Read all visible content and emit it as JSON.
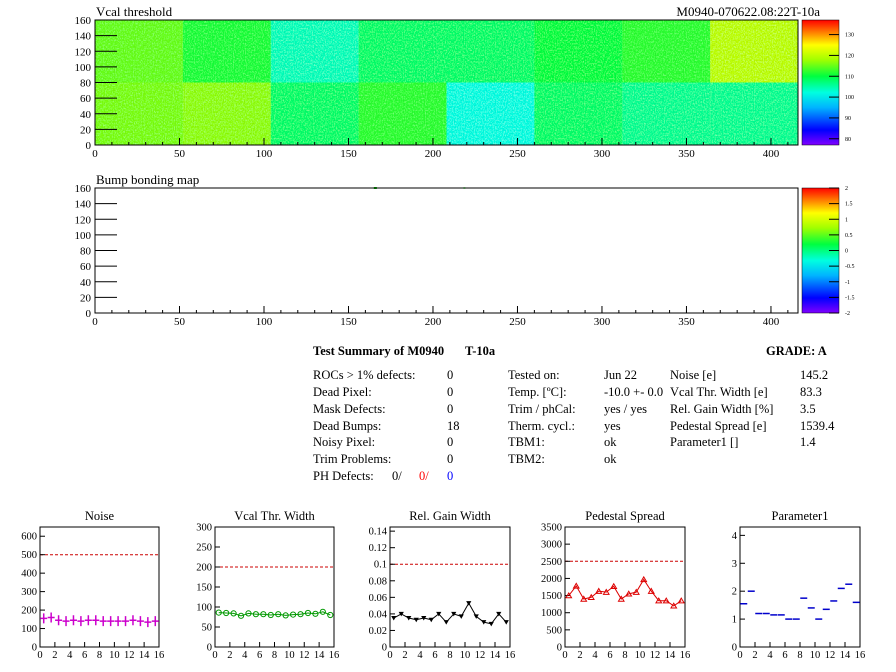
{
  "module_id": "M0940-070622.08:22T-10a",
  "chart_data": [
    {
      "type": "heatmap",
      "title": "Vcal threshold",
      "xlim": [
        0,
        416
      ],
      "ylim": [
        0,
        160
      ],
      "xticks": [
        0,
        50,
        100,
        150,
        200,
        250,
        300,
        350,
        400
      ],
      "yticks": [
        0,
        20,
        40,
        60,
        80,
        100,
        120,
        140,
        160
      ],
      "zticks": [
        80,
        90,
        100,
        110,
        120,
        130
      ],
      "zlim": [
        77,
        137
      ],
      "roc_means": [
        [
          115,
          111,
          104,
          108,
          108,
          110,
          112,
          120
        ],
        [
          116,
          117,
          108,
          112,
          102,
          108,
          106,
          106
        ]
      ],
      "grid": false,
      "colorbar": "right"
    },
    {
      "type": "heatmap",
      "title": "Bump bonding map",
      "xlim": [
        0,
        416
      ],
      "ylim": [
        0,
        160
      ],
      "xticks": [
        0,
        50,
        100,
        150,
        200,
        250,
        300,
        350,
        400
      ],
      "yticks": [
        0,
        20,
        40,
        60,
        80,
        100,
        120,
        140,
        160
      ],
      "zticks": [
        -2,
        -1.5,
        -1,
        -0.5,
        0,
        0.5,
        1,
        1.5,
        2
      ],
      "zlim": [
        -2,
        2
      ],
      "grid": false,
      "colorbar": "right"
    },
    {
      "type": "scatter",
      "title": "Noise",
      "x": [
        0,
        1,
        2,
        3,
        4,
        5,
        6,
        7,
        8,
        9,
        10,
        11,
        12,
        13,
        14,
        15
      ],
      "values": [
        155,
        160,
        145,
        140,
        145,
        140,
        145,
        145,
        140,
        140,
        140,
        140,
        145,
        140,
        135,
        140
      ],
      "xticks": [
        0,
        2,
        4,
        6,
        8,
        10,
        12,
        14,
        16
      ],
      "yticks": [
        0,
        100,
        200,
        300,
        400,
        500,
        600
      ],
      "xlim": [
        0,
        16
      ],
      "ylim": [
        0,
        650
      ],
      "ref_line": 500,
      "color": "#cc00cc",
      "marker": "plus"
    },
    {
      "type": "line",
      "title": "Vcal Thr. Width",
      "x": [
        0,
        1,
        2,
        3,
        4,
        5,
        6,
        7,
        8,
        9,
        10,
        11,
        12,
        13,
        14,
        15
      ],
      "values": [
        86,
        85,
        84,
        78,
        84,
        82,
        82,
        80,
        82,
        79,
        81,
        82,
        85,
        83,
        88,
        80
      ],
      "xticks": [
        0,
        2,
        4,
        6,
        8,
        10,
        12,
        14,
        16
      ],
      "yticks": [
        0,
        50,
        100,
        150,
        200,
        250,
        300
      ],
      "xlim": [
        0,
        16
      ],
      "ylim": [
        0,
        300
      ],
      "ref_line": 200,
      "color": "#009900",
      "marker": "circle"
    },
    {
      "type": "line",
      "title": "Rel. Gain Width",
      "x": [
        0,
        1,
        2,
        3,
        4,
        5,
        6,
        7,
        8,
        9,
        10,
        11,
        12,
        13,
        14,
        15
      ],
      "values": [
        0.035,
        0.04,
        0.035,
        0.033,
        0.035,
        0.033,
        0.04,
        0.03,
        0.04,
        0.037,
        0.053,
        0.037,
        0.03,
        0.028,
        0.04,
        0.03
      ],
      "xticks": [
        0,
        2,
        4,
        6,
        8,
        10,
        12,
        14,
        16
      ],
      "yticks": [
        0,
        0.02,
        0.04,
        0.06,
        0.08,
        0.1,
        0.12,
        0.14
      ],
      "xlim": [
        0,
        16
      ],
      "ylim": [
        0,
        0.145
      ],
      "ref_line": 0.1,
      "color": "#000000",
      "marker": "triangle-down"
    },
    {
      "type": "line",
      "title": "Pedestal Spread",
      "x": [
        0,
        1,
        2,
        3,
        4,
        5,
        6,
        7,
        8,
        9,
        10,
        11,
        12,
        13,
        14,
        15
      ],
      "values": [
        1500,
        1780,
        1400,
        1450,
        1630,
        1600,
        1770,
        1400,
        1550,
        1600,
        1970,
        1630,
        1350,
        1350,
        1200,
        1350
      ],
      "xticks": [
        0,
        2,
        4,
        6,
        8,
        10,
        12,
        14,
        16
      ],
      "yticks": [
        0,
        500,
        1000,
        1500,
        2000,
        2500,
        3000,
        3500
      ],
      "xlim": [
        0,
        16
      ],
      "ylim": [
        0,
        3500
      ],
      "ref_line": 2500,
      "color": "#dd0000",
      "marker": "triangle-up"
    },
    {
      "type": "scatter",
      "title": "Parameter1",
      "x": [
        0,
        1,
        2,
        3,
        4,
        5,
        6,
        7,
        8,
        9,
        10,
        11,
        12,
        13,
        14,
        15
      ],
      "values": [
        1.55,
        2.0,
        1.2,
        1.2,
        1.15,
        1.15,
        1.0,
        1.0,
        1.75,
        1.4,
        1.0,
        1.35,
        1.65,
        2.1,
        2.25,
        1.6
      ],
      "xticks": [
        0,
        2,
        4,
        6,
        8,
        10,
        12,
        14,
        16
      ],
      "yticks": [
        0,
        1,
        2,
        3,
        4
      ],
      "xlim": [
        0,
        16
      ],
      "ylim": [
        0,
        4.3
      ],
      "ref_line": null,
      "color": "#0000cc",
      "marker": "hbar"
    }
  ],
  "summary": {
    "title": "Test Summary of M0940",
    "temp_code": "T-10a",
    "grade": "GRADE:  A",
    "col1": [
      {
        "label": "ROCs > 1% defects:",
        "value": "0"
      },
      {
        "label": "Dead Pixel:",
        "value": "0"
      },
      {
        "label": "Mask Defects:",
        "value": "0"
      },
      {
        "label": "Dead Bumps:",
        "value": "18"
      },
      {
        "label": "Noisy Pixel:",
        "value": "0"
      },
      {
        "label": "Trim Problems:",
        "value": "0"
      }
    ],
    "ph_label": "PH Defects:",
    "ph_values": [
      "0/",
      "0/",
      "0"
    ],
    "col2": [
      {
        "label": "Tested on:",
        "value": "Jun 22"
      },
      {
        "label": "Temp. [ºC]:",
        "value": "-10.0 +- 0.0"
      },
      {
        "label": "Trim / phCal:",
        "value": "yes / yes"
      },
      {
        "label": "Therm. cycl.:",
        "value": "yes"
      },
      {
        "label": "TBM1:",
        "value": "ok"
      },
      {
        "label": "TBM2:",
        "value": "ok"
      }
    ],
    "col3": [
      {
        "label": "Noise [e]",
        "value": "145.2"
      },
      {
        "label": "Vcal Thr. Width [e]",
        "value": "83.3"
      },
      {
        "label": "Rel. Gain Width [%]",
        "value": "3.5"
      },
      {
        "label": "Pedestal Spread [e]",
        "value": "1539.4"
      },
      {
        "label": "Parameter1 []",
        "value": "1.4"
      }
    ]
  }
}
